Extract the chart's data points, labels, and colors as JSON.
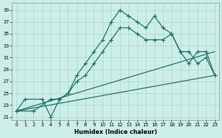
{
  "xlabel": "Humidex (Indice chaleur)",
  "bg_color": "#cceee8",
  "grid_color": "#b0d8d0",
  "line_color": "#1a6b5a",
  "xlim": [
    -0.5,
    23.5
  ],
  "ylim": [
    20.5,
    40.2
  ],
  "yticks": [
    21,
    23,
    25,
    27,
    29,
    31,
    33,
    35,
    37,
    39
  ],
  "xticks": [
    0,
    1,
    2,
    3,
    4,
    5,
    6,
    7,
    8,
    9,
    10,
    11,
    12,
    13,
    14,
    15,
    16,
    17,
    18,
    19,
    20,
    21,
    22,
    23
  ],
  "line1_x": [
    0,
    1,
    3,
    4,
    5,
    6,
    7,
    8,
    9,
    10,
    11,
    12,
    13,
    14,
    15,
    16,
    17,
    18,
    19,
    20,
    21,
    22,
    23
  ],
  "line1_y": [
    22,
    24,
    24,
    21,
    24,
    25,
    28,
    30,
    32,
    34,
    37,
    39,
    38,
    37,
    36,
    38,
    36,
    35,
    32,
    30,
    32,
    32,
    28
  ],
  "line2_x": [
    0,
    2,
    4,
    5,
    6,
    7,
    8,
    9,
    10,
    11,
    12,
    13,
    14,
    15,
    16,
    17,
    18,
    19,
    20,
    21,
    22,
    23
  ],
  "line2_y": [
    22,
    22,
    24,
    24,
    25,
    27,
    28,
    30,
    32,
    34,
    36,
    36,
    35,
    34,
    34,
    34,
    35,
    32,
    32,
    30,
    31,
    28
  ],
  "line3_x": [
    0,
    23
  ],
  "line3_y": [
    22,
    32
  ],
  "line4_x": [
    0,
    23
  ],
  "line4_y": [
    22,
    28
  ]
}
